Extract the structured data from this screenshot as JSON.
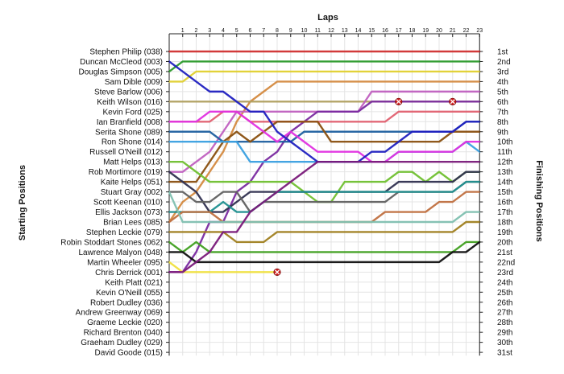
{
  "chart_data": {
    "type": "line",
    "title": "",
    "xlabel": "Laps",
    "ylabel_left": "Starting Positions",
    "ylabel_right": "Finishing Positions",
    "laps": [
      1,
      2,
      3,
      4,
      5,
      6,
      7,
      8,
      9,
      10,
      11,
      12,
      13,
      14,
      15,
      16,
      17,
      18,
      19,
      20,
      21,
      22,
      23
    ],
    "xlim": [
      0,
      23
    ],
    "starting_positions": [
      "Stephen Philip (038)",
      "Duncan McCleod (003)",
      "Douglas Simpson (005)",
      "Sam Dible (009)",
      "Steve Barlow (006)",
      "Keith Wilson (016)",
      "Kevin Ford (025)",
      "Ian Branfield (008)",
      "Serita Shone (089)",
      "Ron Shone (014)",
      "Russell O'Neill (012)",
      "Matt Helps (013)",
      "Rob Mortimore (019)",
      "Kaite Helps (051)",
      "Stuart Gray (002)",
      "Scott Keenan (010)",
      "Ellis Jackson (073)",
      "Brian Lees (085)",
      "Stephen Leckie (079)",
      "Robin Stoddart Stones (062)",
      "Lawrence Malyon (048)",
      "Martin Wheeler (095)",
      "Chris Derrick (001)",
      "Keith Platt (021)",
      "Kevin O'Neill (055)",
      "Robert Dudley (036)",
      "Andrew Greenway (069)",
      "Graeme Leckie (020)",
      "Richard Brenton (040)",
      "Graeham Dudley (029)",
      "David Goode (015)"
    ],
    "finishing_positions": [
      "1st",
      "2nd",
      "3rd",
      "4th",
      "5th",
      "6th",
      "7th",
      "8th",
      "9th",
      "10th",
      "11th",
      "12th",
      "13th",
      "14th",
      "15th",
      "16th",
      "17th",
      "18th",
      "19th",
      "20th",
      "21st",
      "22nd",
      "23rd",
      "24th",
      "25th",
      "26th",
      "27th",
      "28th",
      "29th",
      "30th",
      "31st"
    ],
    "series": [
      {
        "color": "#d03030",
        "positions": [
          1,
          1,
          1,
          1,
          1,
          1,
          1,
          1,
          1,
          1,
          1,
          1,
          1,
          1,
          1,
          1,
          1,
          1,
          1,
          1,
          1,
          1,
          1,
          1
        ]
      },
      {
        "color": "#2a9a2a",
        "positions": [
          3,
          2,
          2,
          2,
          2,
          2,
          2,
          2,
          2,
          2,
          2,
          2,
          2,
          2,
          2,
          2,
          2,
          2,
          2,
          2,
          2,
          2,
          2,
          2
        ]
      },
      {
        "color": "#e0d030",
        "positions": [
          4,
          4,
          3,
          3,
          3,
          3,
          3,
          3,
          3,
          3,
          3,
          3,
          3,
          3,
          3,
          3,
          3,
          3,
          3,
          3,
          3,
          3,
          3,
          3
        ]
      },
      {
        "color": "#d48a40",
        "positions": [
          18,
          16,
          15,
          13,
          11,
          8,
          6,
          5,
          4,
          4,
          4,
          4,
          4,
          4,
          4,
          4,
          4,
          4,
          4,
          4,
          4,
          4,
          4,
          4
        ]
      },
      {
        "color": "#b0a060",
        "positions": [
          6,
          6,
          6,
          6,
          6,
          6,
          6,
          6,
          6,
          6,
          6,
          6,
          6,
          6,
          6,
          6,
          6,
          6,
          6,
          6,
          6,
          6,
          6,
          6
        ]
      },
      {
        "color": "#c060c0",
        "positions": [
          13,
          13,
          12,
          11,
          9,
          7,
          7,
          7,
          7,
          7,
          7,
          7,
          7,
          7,
          7,
          5,
          5,
          5,
          5,
          5,
          5,
          5,
          5,
          5
        ]
      },
      {
        "color": "#7a2aa0",
        "positions": [
          23,
          23,
          21,
          18,
          18,
          15,
          14,
          12,
          11,
          9,
          8,
          7,
          7,
          7,
          7,
          6,
          6,
          6,
          6,
          6,
          6,
          6,
          6,
          6
        ]
      },
      {
        "color": "#e06070",
        "positions": [
          8,
          8,
          8,
          8,
          7,
          7,
          8,
          8,
          8,
          8,
          8,
          8,
          8,
          8,
          8,
          8,
          8,
          7,
          7,
          7,
          7,
          7,
          7,
          7
        ]
      },
      {
        "color": "#2060a0",
        "positions": [
          9,
          9,
          9,
          9,
          10,
          10,
          10,
          10,
          10,
          10,
          9,
          9,
          9,
          9,
          9,
          9,
          9,
          9,
          9,
          9,
          9,
          9,
          8,
          8
        ]
      },
      {
        "color": "#8a5010",
        "positions": [
          14,
          14,
          14,
          12,
          10,
          9,
          10,
          9,
          8,
          8,
          8,
          8,
          10,
          10,
          10,
          10,
          10,
          10,
          10,
          10,
          10,
          9,
          9,
          9
        ]
      },
      {
        "color": "#3aa0e0",
        "positions": [
          10,
          10,
          10,
          10,
          10,
          10,
          12,
          12,
          12,
          12,
          12,
          12,
          12,
          12,
          12,
          12,
          12,
          11,
          11,
          11,
          11,
          11,
          10,
          11
        ]
      },
      {
        "color": "#e030e0",
        "positions": [
          8,
          8,
          8,
          7,
          7,
          7,
          8,
          9,
          10,
          9,
          10,
          11,
          11,
          11,
          11,
          12,
          12,
          11,
          11,
          11,
          11,
          11,
          10,
          10
        ]
      },
      {
        "color": "#2020c0",
        "positions": [
          2,
          3,
          4,
          5,
          5,
          6,
          7,
          7,
          9,
          10,
          11,
          12,
          12,
          12,
          12,
          11,
          11,
          10,
          9,
          9,
          9,
          9,
          8,
          8
        ]
      },
      {
        "color": "#70c030",
        "positions": [
          12,
          12,
          13,
          14,
          14,
          14,
          14,
          14,
          14,
          14,
          15,
          16,
          16,
          14,
          14,
          14,
          14,
          13,
          13,
          14,
          13,
          14,
          13,
          13
        ]
      },
      {
        "color": "#303050",
        "positions": [
          13,
          14,
          15,
          17,
          17,
          16,
          15,
          15,
          15,
          15,
          15,
          15,
          15,
          15,
          15,
          15,
          15,
          14,
          14,
          14,
          14,
          14,
          13,
          13
        ]
      },
      {
        "color": "#606060",
        "positions": [
          15,
          15,
          16,
          16,
          15,
          15,
          17,
          16,
          16,
          16,
          16,
          16,
          16,
          16,
          16,
          16,
          16,
          15,
          15,
          15,
          15,
          15,
          14,
          14
        ]
      },
      {
        "color": "#209090",
        "positions": [
          17,
          17,
          17,
          17,
          16,
          17,
          17,
          16,
          15,
          15,
          15,
          15,
          15,
          15,
          15,
          15,
          15,
          15,
          15,
          15,
          15,
          15,
          14,
          14
        ]
      },
      {
        "color": "#c07040",
        "positions": [
          18,
          17,
          17,
          17,
          18,
          18,
          18,
          18,
          18,
          18,
          18,
          18,
          18,
          18,
          18,
          18,
          17,
          17,
          17,
          17,
          16,
          16,
          15,
          15
        ]
      },
      {
        "color": "#80c0b0",
        "positions": [
          15,
          18,
          18,
          18,
          18,
          18,
          18,
          18,
          18,
          18,
          18,
          18,
          18,
          18,
          18,
          18,
          18,
          18,
          18,
          18,
          18,
          18,
          17,
          17
        ]
      },
      {
        "color": "#a08020",
        "positions": [
          19,
          19,
          19,
          19,
          19,
          20,
          20,
          20,
          19,
          19,
          19,
          19,
          19,
          19,
          19,
          19,
          19,
          19,
          19,
          19,
          19,
          19,
          18,
          18
        ]
      },
      {
        "color": "#40a020",
        "positions": [
          20,
          21,
          20,
          21,
          21,
          21,
          21,
          21,
          21,
          21,
          21,
          21,
          21,
          21,
          21,
          21,
          21,
          21,
          21,
          21,
          21,
          21,
          20,
          20
        ]
      },
      {
        "color": "#101010",
        "positions": [
          21,
          21,
          22,
          22,
          22,
          22,
          22,
          22,
          22,
          22,
          22,
          22,
          22,
          22,
          22,
          22,
          22,
          22,
          22,
          22,
          22,
          21,
          21,
          20
        ]
      },
      {
        "color": "#f0e040",
        "positions": [
          22,
          23,
          23,
          23,
          23,
          23,
          23,
          23,
          23
        ]
      },
      {
        "color": "#7a1a7a",
        "positions": [
          23,
          23,
          22,
          21,
          19,
          19,
          17,
          16,
          15,
          14,
          13,
          12,
          12,
          12,
          12,
          12,
          12,
          12,
          12,
          12,
          12,
          12,
          12,
          12
        ]
      }
    ],
    "retired_markers": [
      {
        "lap": 8,
        "position": 23
      },
      {
        "lap": 17,
        "position": 6
      },
      {
        "lap": 21,
        "position": 6
      }
    ],
    "grid": true
  }
}
